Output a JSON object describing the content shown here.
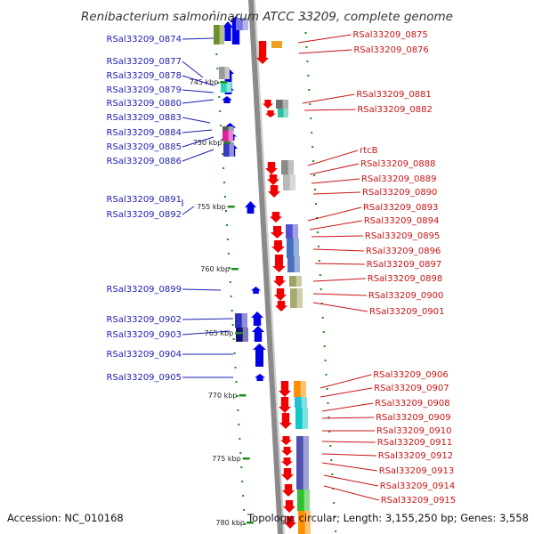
{
  "title": "Renibacterium salmoninarum ATCC 33209, complete genome",
  "footer": {
    "accession": "Accession: NC_010168",
    "summary": "Topology: circular; Length: 3,155,250 bp; Genes: 3,558"
  },
  "colors": {
    "forward_gene": "#0000e6",
    "reverse_gene": "#f00000",
    "left_label": "#1c1cb4",
    "right_label": "#c81414",
    "tick": "#1e8c1e",
    "backbone": "#8a8a8a"
  },
  "ticks": [
    {
      "label": "745 kbp"
    },
    {
      "label": "750 kbp"
    },
    {
      "label": "755 kbp"
    },
    {
      "label": "760 kbp"
    },
    {
      "label": "765 kbp"
    },
    {
      "label": "770 kbp"
    },
    {
      "label": "775 kbp"
    },
    {
      "label": "780 kbp"
    }
  ],
  "left_labels": [
    "RSal33209_0874",
    "RSal33209_0877",
    "RSal33209_0878",
    "RSal33209_0879",
    "RSal33209_0880",
    "RSal33209_0883",
    "RSal33209_0884",
    "RSal33209_0885",
    "RSal33209_0886",
    "RSal33209_0891",
    "RSal33209_0892",
    "RSal33209_0899",
    "RSal33209_0902",
    "RSal33209_0903",
    "RSal33209_0904",
    "RSal33209_0905"
  ],
  "right_labels": [
    "RSal33209_0875",
    "RSal33209_0876",
    "RSal33209_0881",
    "RSal33209_0882",
    "rtcB",
    "RSal33209_0888",
    "RSal33209_0889",
    "RSal33209_0890",
    "RSal33209_0893",
    "RSal33209_0894",
    "RSal33209_0895",
    "RSal33209_0896",
    "RSal33209_0897",
    "RSal33209_0898",
    "RSal33209_0900",
    "RSal33209_0901",
    "RSal33209_0906",
    "RSal33209_0907",
    "RSal33209_0908",
    "RSal33209_0909",
    "RSal33209_0910",
    "RSal33209_0911",
    "RSal33209_0912",
    "RSal33209_0913",
    "RSal33209_0914",
    "RSal33209_0915"
  ]
}
